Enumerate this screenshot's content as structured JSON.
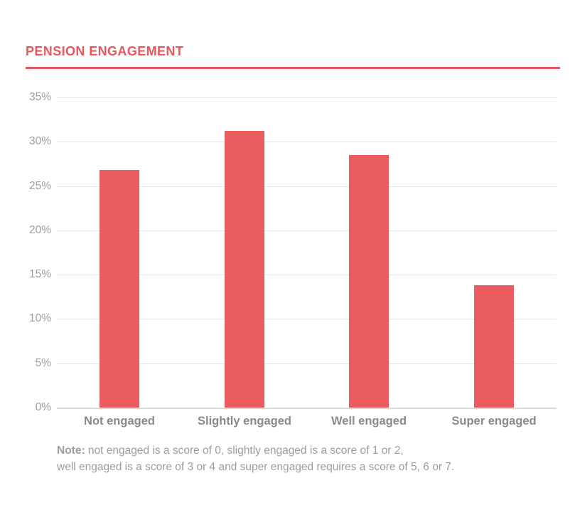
{
  "title": "PENSION ENGAGEMENT",
  "colors": {
    "background": "#ffffff",
    "accent_red": "#e7575e",
    "bar_red": "#ea5c5d",
    "gridline": "#e4e4e4",
    "axis_line": "#dadada",
    "y_tick_label": "#9e9e9e",
    "x_label": "#8a8a8a",
    "note_text": "#9c9c9c"
  },
  "chart_data": {
    "type": "bar",
    "title": "PENSION ENGAGEMENT",
    "categories": [
      "Not engaged",
      "Slightly engaged",
      "Well engaged",
      "Super engaged"
    ],
    "values": [
      26.8,
      31.2,
      28.5,
      13.8
    ],
    "unit": "%",
    "xlabel": "",
    "ylabel": "",
    "ylim": [
      0,
      35
    ],
    "y_tick_step": 5,
    "y_ticks": [
      "35%",
      "30%",
      "25%",
      "20%",
      "15%",
      "10%",
      "5%",
      "0%"
    ],
    "grid": true,
    "legend": "none",
    "bar_color": "#ea5c5d"
  },
  "note": {
    "prefix": "Note:",
    "line1_rest": "not engaged is a score of 0, slightly engaged is a score of 1 or 2,",
    "line2": "well engaged is a score of 3 or 4 and super engaged requires a score of 5, 6 or 7."
  }
}
